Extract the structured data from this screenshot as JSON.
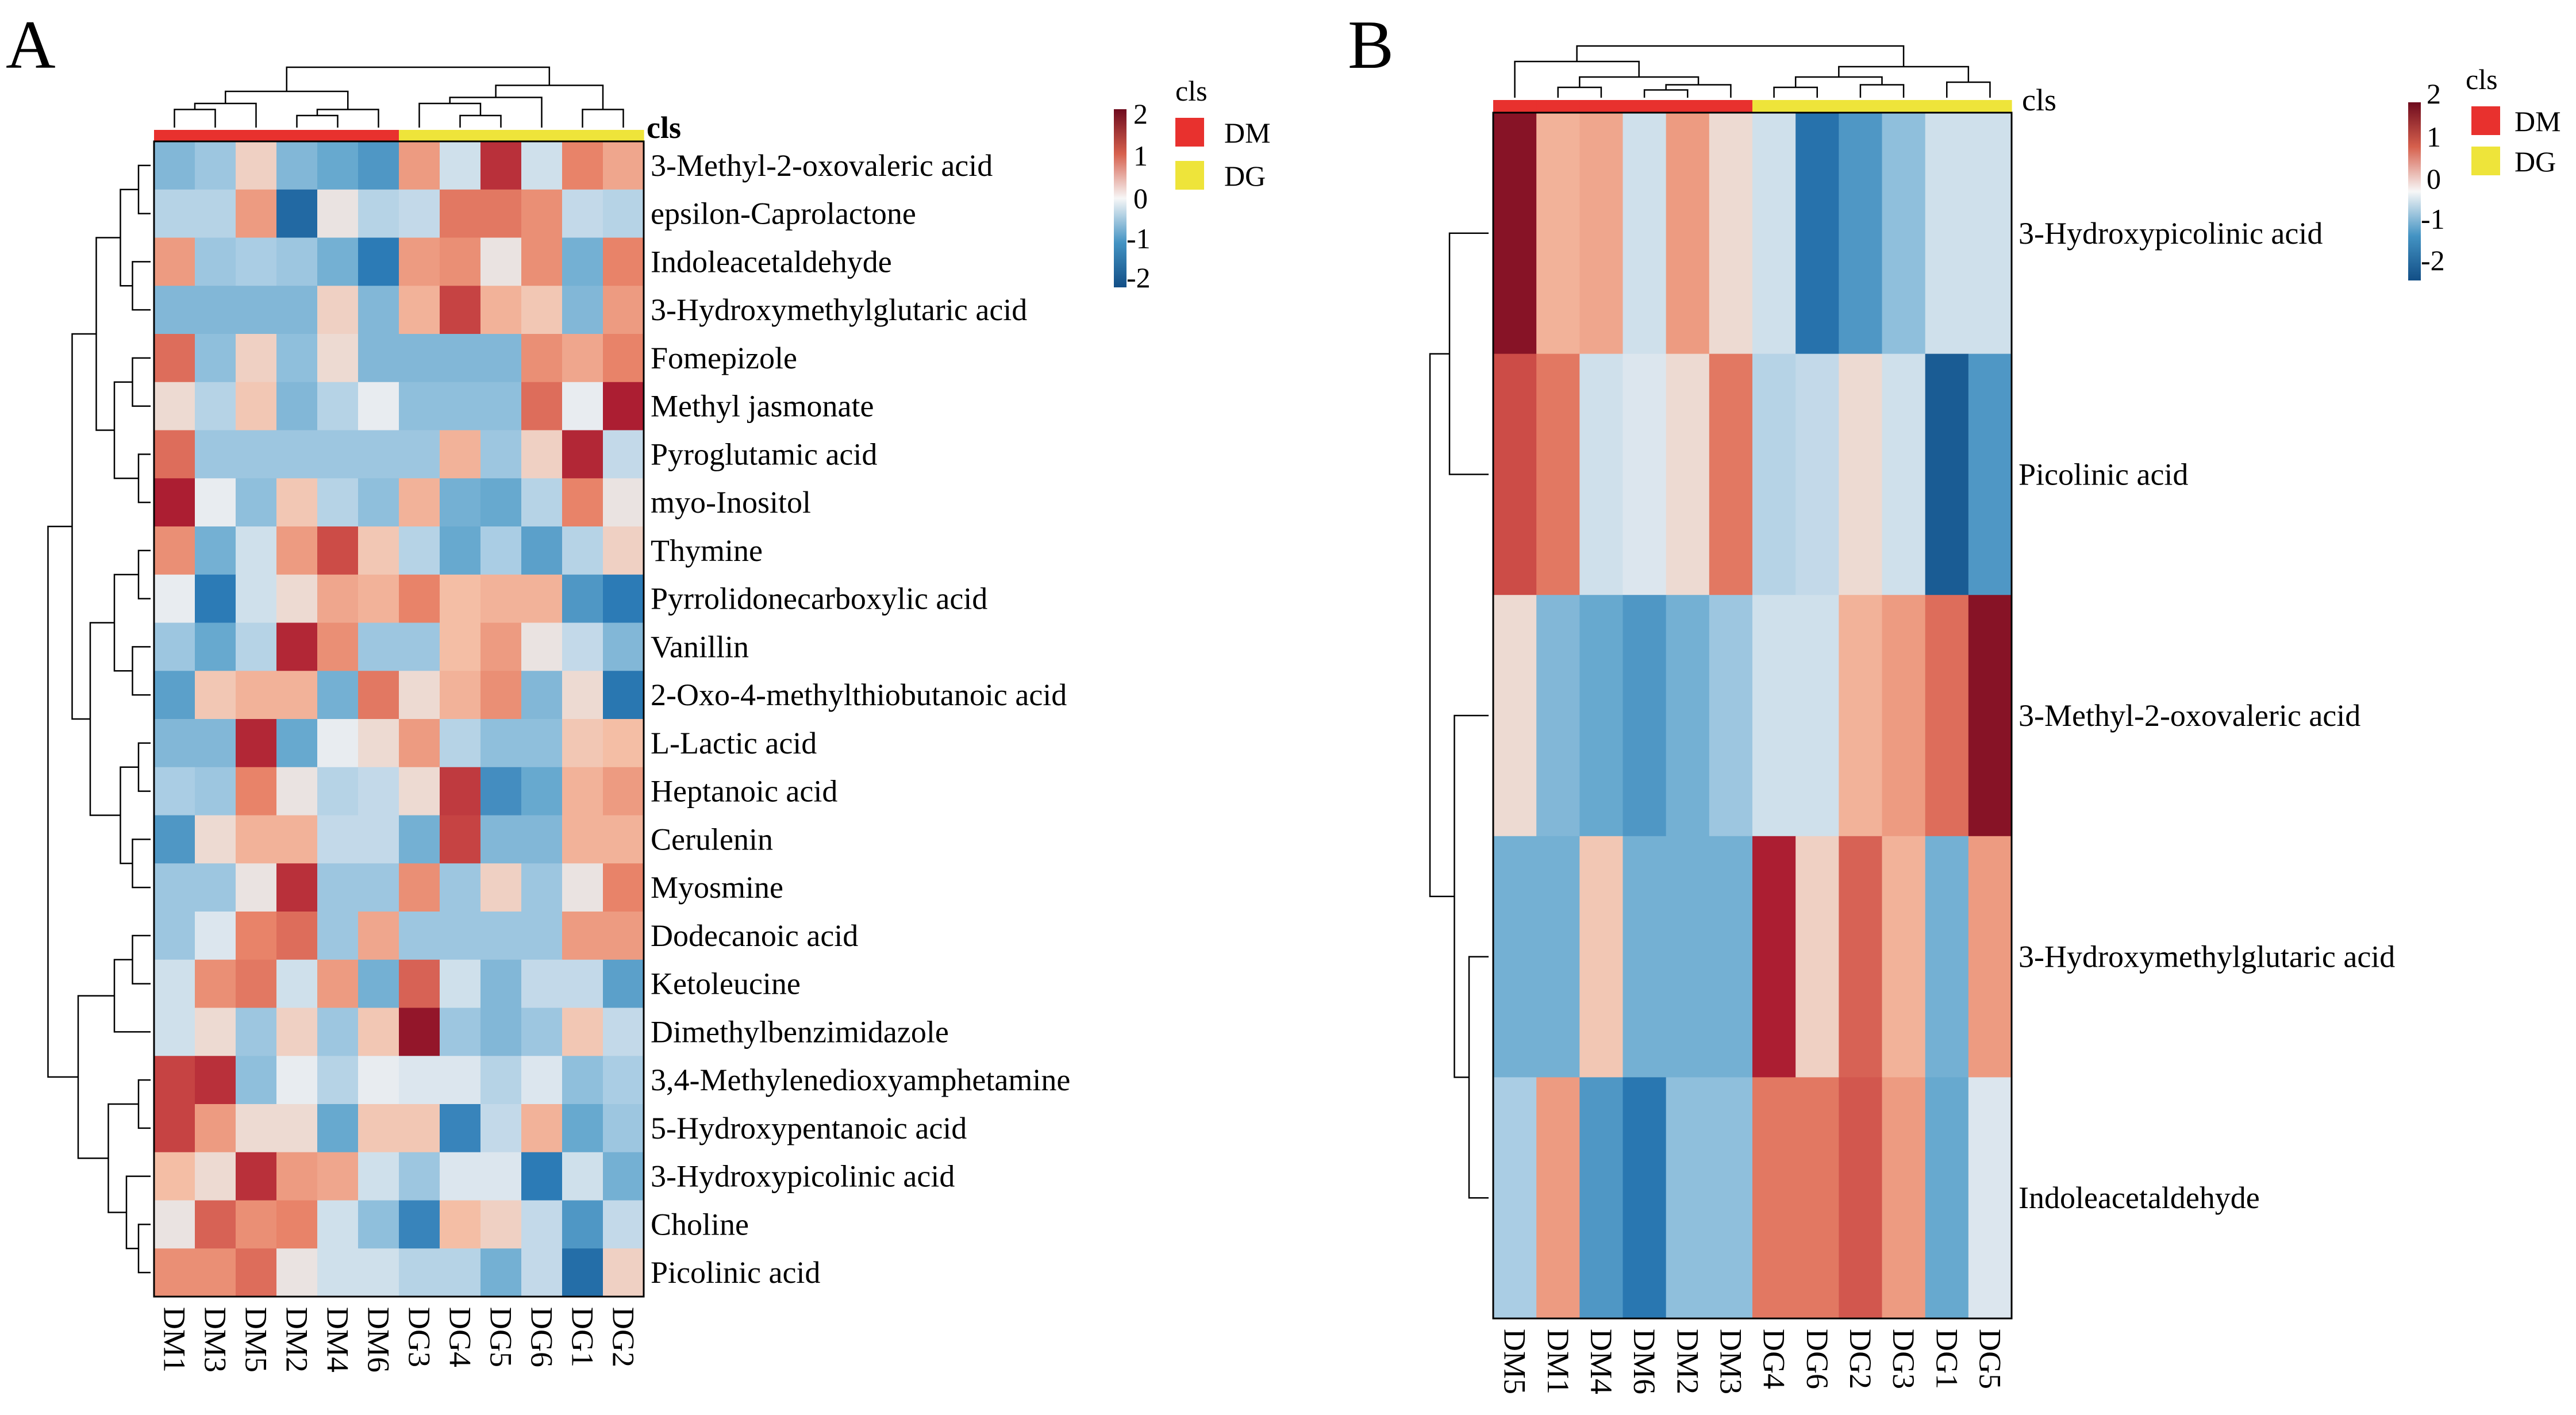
{
  "chart_data": [
    {
      "type": "heatmap",
      "panel_label": "A",
      "title": "",
      "annotation_title": "cls",
      "legend_title": "cls",
      "columns": [
        "DM1",
        "DM3",
        "DM5",
        "DM2",
        "DM4",
        "DM6",
        "DG3",
        "DG4",
        "DG5",
        "DG6",
        "DG1",
        "DG2"
      ],
      "column_groups": [
        "DM",
        "DM",
        "DM",
        "DM",
        "DM",
        "DM",
        "DG",
        "DG",
        "DG",
        "DG",
        "DG",
        "DG"
      ],
      "rows": [
        "3-Methyl-2-oxovaleric acid",
        "epsilon-Caprolactone",
        "Indoleacetaldehyde",
        "3-Hydroxymethylglutaric acid",
        "Fomepizole",
        "Methyl jasmonate",
        "Pyroglutamic acid",
        "myo-Inositol",
        "Thymine",
        "Pyrrolidonecarboxylic acid",
        "Vanillin",
        "2-Oxo-4-methylthiobutanoic acid",
        "L-Lactic acid",
        "Heptanoic acid",
        "Cerulenin",
        "Myosmine",
        "Dodecanoic acid",
        "Ketoleucine",
        "Dimethylbenzimidazole",
        "3,4-Methylenedioxyamphetamine",
        "5-Hydroxypentanoic acid",
        "3-Hydroxypicolinic acid",
        "Choline",
        "Picolinic acid"
      ],
      "values": [
        [
          -0.8,
          -0.6,
          0.3,
          -0.8,
          -1.0,
          -1.2,
          0.8,
          -0.2,
          1.8,
          -0.2,
          1.0,
          0.7
        ],
        [
          -0.4,
          -0.4,
          0.8,
          -1.9,
          0.1,
          -0.4,
          -0.3,
          1.1,
          1.1,
          0.9,
          -0.3,
          -0.4
        ],
        [
          0.8,
          -0.6,
          -0.5,
          -0.6,
          -0.9,
          -1.5,
          0.8,
          0.9,
          0.1,
          0.9,
          -0.9,
          1.0
        ],
        [
          -0.8,
          -0.8,
          -0.8,
          -0.8,
          0.3,
          -0.8,
          0.6,
          1.6,
          0.6,
          0.4,
          -0.8,
          0.8
        ],
        [
          1.2,
          -0.7,
          0.3,
          -0.7,
          0.2,
          -0.8,
          -0.8,
          -0.8,
          -0.8,
          0.9,
          0.7,
          1.0
        ],
        [
          0.2,
          -0.4,
          0.4,
          -0.8,
          -0.4,
          0.0,
          -0.7,
          -0.7,
          -0.7,
          1.2,
          0.0,
          2.0
        ],
        [
          1.2,
          -0.6,
          -0.6,
          -0.6,
          -0.6,
          -0.6,
          -0.6,
          0.6,
          -0.6,
          0.3,
          1.9,
          -0.3
        ],
        [
          2.0,
          0.0,
          -0.7,
          0.4,
          -0.4,
          -0.7,
          0.6,
          -0.9,
          -1.0,
          -0.4,
          1.0,
          0.1
        ],
        [
          0.9,
          -0.9,
          -0.2,
          0.8,
          1.5,
          0.4,
          -0.4,
          -1.0,
          -0.5,
          -1.1,
          -0.4,
          0.3
        ],
        [
          0.0,
          -1.5,
          -0.2,
          0.2,
          0.7,
          0.6,
          1.0,
          0.5,
          0.6,
          0.6,
          -1.2,
          -1.5
        ],
        [
          -0.6,
          -1.0,
          -0.4,
          1.9,
          0.9,
          -0.6,
          -0.6,
          0.5,
          0.8,
          0.1,
          -0.3,
          -0.8
        ],
        [
          -1.1,
          0.4,
          0.6,
          0.6,
          -0.9,
          1.1,
          0.2,
          0.6,
          0.9,
          -0.8,
          0.2,
          -1.6
        ],
        [
          -0.8,
          -0.8,
          1.9,
          -1.0,
          0.0,
          0.2,
          0.8,
          -0.4,
          -0.7,
          -0.7,
          0.4,
          0.5
        ],
        [
          -0.5,
          -0.6,
          1.0,
          0.1,
          -0.4,
          -0.3,
          0.2,
          1.7,
          -1.3,
          -1.0,
          0.6,
          0.8
        ],
        [
          -1.2,
          0.2,
          0.6,
          0.6,
          -0.3,
          -0.3,
          -0.9,
          1.6,
          -0.8,
          -0.8,
          0.6,
          0.6
        ],
        [
          -0.6,
          -0.6,
          0.1,
          1.8,
          -0.6,
          -0.6,
          0.9,
          -0.6,
          0.3,
          -0.6,
          0.1,
          1.0
        ],
        [
          -0.6,
          -0.1,
          1.0,
          1.2,
          -0.6,
          0.7,
          -0.6,
          -0.6,
          -0.6,
          -0.6,
          0.8,
          0.8
        ],
        [
          -0.2,
          0.9,
          1.1,
          -0.2,
          0.8,
          -0.9,
          1.3,
          -0.2,
          -0.8,
          -0.3,
          -0.3,
          -1.1
        ],
        [
          -0.2,
          0.2,
          -0.6,
          0.3,
          -0.6,
          0.4,
          2.2,
          -0.6,
          -0.8,
          -0.6,
          0.4,
          -0.3
        ],
        [
          1.6,
          1.8,
          -0.7,
          0.0,
          -0.4,
          0.0,
          -0.1,
          -0.1,
          -0.4,
          -0.1,
          -0.7,
          -0.5
        ],
        [
          1.6,
          0.8,
          0.2,
          0.2,
          -1.0,
          0.4,
          0.4,
          -1.4,
          -0.3,
          0.6,
          -1.0,
          -0.6
        ],
        [
          0.5,
          0.2,
          1.8,
          0.8,
          0.7,
          -0.2,
          -0.6,
          -0.1,
          -0.1,
          -1.5,
          -0.2,
          -0.9
        ],
        [
          0.1,
          1.3,
          0.9,
          1.0,
          -0.2,
          -0.7,
          -1.4,
          0.5,
          0.3,
          -0.3,
          -1.2,
          -0.3
        ],
        [
          0.9,
          0.9,
          1.2,
          0.1,
          -0.2,
          -0.2,
          -0.4,
          -0.4,
          -0.9,
          -0.3,
          -1.8,
          0.3
        ]
      ],
      "color_scale": {
        "ticks": [
          "2",
          "1",
          "0",
          "-1",
          "-2"
        ],
        "range": [
          -2,
          2
        ],
        "low": "#124E86",
        "mid": "#F7F7F7",
        "high": "#6E0B1E"
      },
      "groups": [
        {
          "name": "DM",
          "color": "#E8312E"
        },
        {
          "name": "DG",
          "color": "#EEE43A"
        }
      ]
    },
    {
      "type": "heatmap",
      "panel_label": "B",
      "title": "",
      "annotation_title": "cls",
      "legend_title": "cls",
      "columns": [
        "DM5",
        "DM1",
        "DM4",
        "DM6",
        "DM2",
        "DM3",
        "DG4",
        "DG6",
        "DG2",
        "DG3",
        "DG1",
        "DG5"
      ],
      "column_groups": [
        "DM",
        "DM",
        "DM",
        "DM",
        "DM",
        "DM",
        "DG",
        "DG",
        "DG",
        "DG",
        "DG",
        "DG"
      ],
      "rows": [
        "3-Hydroxypicolinic acid",
        "Picolinic acid",
        "3-Methyl-2-oxovaleric acid",
        "3-Hydroxymethylglutaric acid",
        "Indoleacetaldehyde"
      ],
      "values": [
        [
          2.3,
          0.6,
          0.7,
          -0.2,
          0.8,
          0.2,
          -0.2,
          -1.7,
          -1.2,
          -0.7,
          -0.2,
          -0.2
        ],
        [
          1.5,
          1.1,
          -0.2,
          -0.1,
          0.2,
          1.1,
          -0.4,
          -0.3,
          0.2,
          -0.2,
          -2.2,
          -1.2
        ],
        [
          0.2,
          -0.8,
          -1.0,
          -1.2,
          -0.9,
          -0.6,
          -0.2,
          -0.2,
          0.6,
          0.8,
          1.2,
          2.3
        ],
        [
          -0.9,
          -0.9,
          0.4,
          -0.9,
          -0.9,
          -0.9,
          2.0,
          0.3,
          1.3,
          0.6,
          -0.9,
          0.8
        ],
        [
          -0.5,
          0.8,
          -1.2,
          -1.6,
          -0.7,
          -0.7,
          1.1,
          1.1,
          1.4,
          0.8,
          -1.0,
          -0.1
        ]
      ],
      "color_scale": {
        "ticks": [
          "2",
          "1",
          "0",
          "-1",
          "-2"
        ],
        "range": [
          -2,
          2
        ],
        "low": "#124E86",
        "mid": "#F7F7F7",
        "high": "#6E0B1E"
      },
      "groups": [
        {
          "name": "DM",
          "color": "#E8312E"
        },
        {
          "name": "DG",
          "color": "#EEE43A"
        }
      ]
    }
  ]
}
